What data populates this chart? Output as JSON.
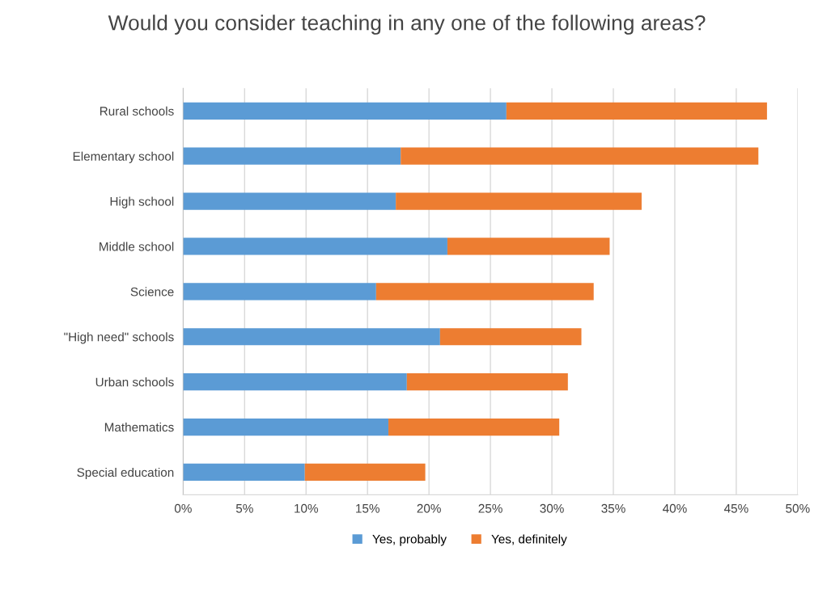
{
  "chart_data": {
    "type": "bar",
    "orientation": "horizontal",
    "stacked": true,
    "title": "Would you consider teaching in any one of the following areas?",
    "categories": [
      "Rural schools",
      "Elementary school",
      "High school",
      "Middle school",
      "Science",
      "\"High need\" schools",
      "Urban schools",
      "Mathematics",
      "Special education"
    ],
    "series": [
      {
        "name": "Yes, probably",
        "color": "#5b9bd5",
        "values": [
          26.3,
          17.7,
          17.3,
          21.5,
          15.7,
          20.9,
          18.2,
          16.7,
          9.9
        ]
      },
      {
        "name": "Yes, definitely",
        "color": "#ed7d31",
        "values": [
          21.2,
          29.1,
          20.0,
          13.2,
          17.7,
          11.5,
          13.1,
          13.9,
          9.8
        ]
      }
    ],
    "xlim": [
      0,
      50
    ],
    "xticks": [
      {
        "value": 0,
        "label": "0%"
      },
      {
        "value": 5,
        "label": "5%"
      },
      {
        "value": 10,
        "label": "10%"
      },
      {
        "value": 15,
        "label": "15%"
      },
      {
        "value": 20,
        "label": "20%"
      },
      {
        "value": 25,
        "label": "25%"
      },
      {
        "value": 30,
        "label": "30%"
      },
      {
        "value": 35,
        "label": "35%"
      },
      {
        "value": 40,
        "label": "40%"
      },
      {
        "value": 45,
        "label": "45%"
      },
      {
        "value": 50,
        "label": "50%"
      }
    ],
    "grid": "x",
    "legend": "bottom"
  }
}
